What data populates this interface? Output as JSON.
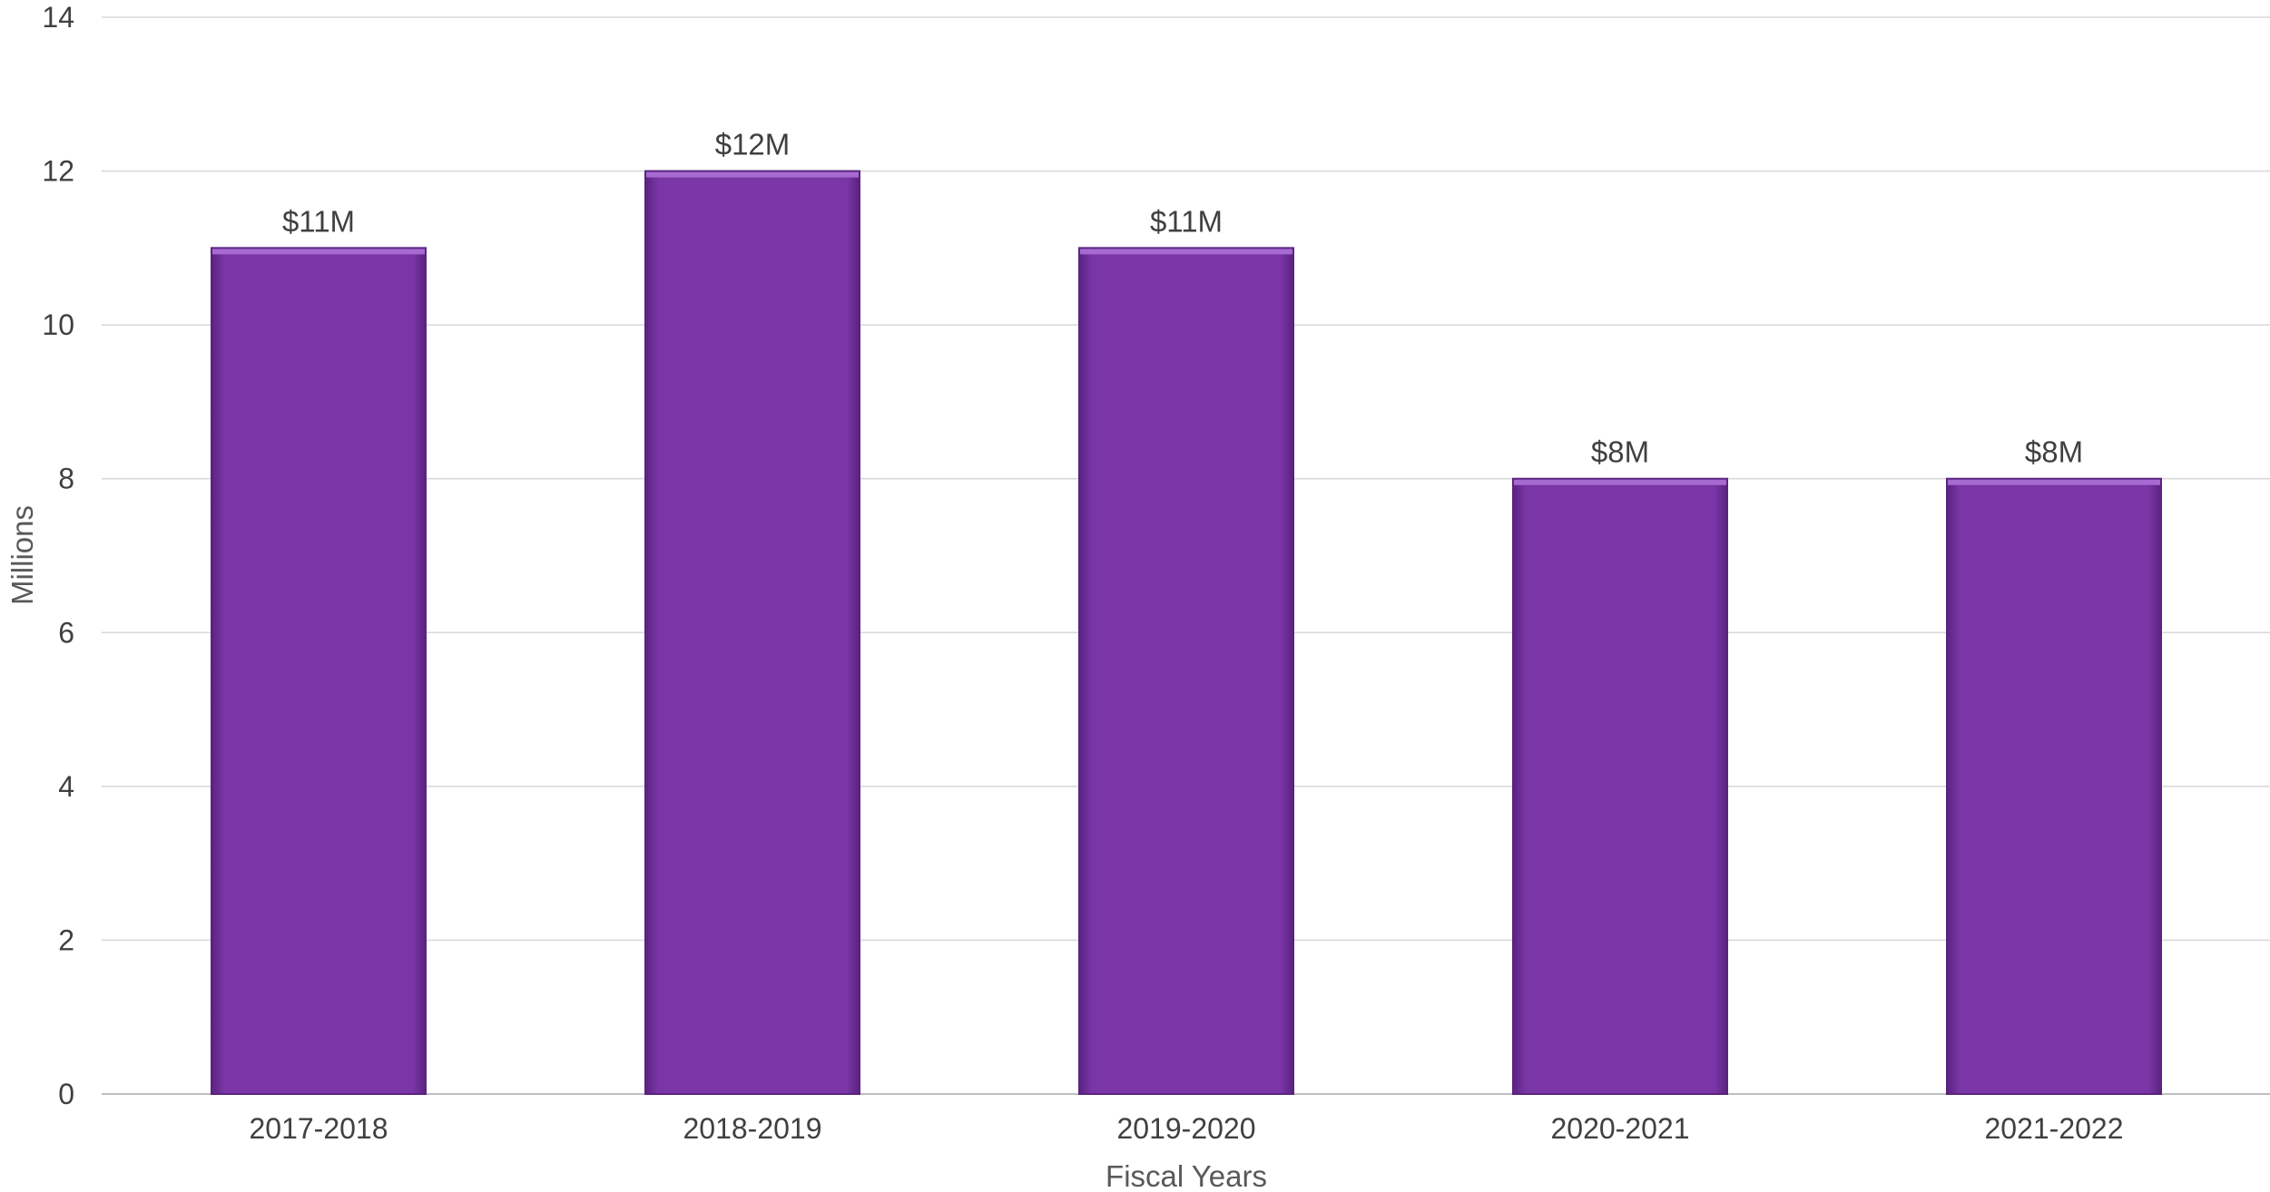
{
  "chart_data": {
    "type": "bar",
    "title": "",
    "xlabel": "Fiscal Years",
    "ylabel": "Millions",
    "categories": [
      "2017-2018",
      "2018-2019",
      "2019-2020",
      "2020-2021",
      "2021-2022"
    ],
    "values": [
      11,
      12,
      11,
      8,
      8
    ],
    "data_labels": [
      "$11M",
      "$12M",
      "$11M",
      "$8M",
      "$8M"
    ],
    "yticks": [
      0,
      2,
      4,
      6,
      8,
      10,
      12,
      14
    ],
    "ylim": [
      0,
      14
    ],
    "grid": true,
    "legend": "none",
    "colors": {
      "bar_fill": "#7a36a6",
      "bar_edge": "#5a2380",
      "bar_highlight": "#a66ad0"
    }
  }
}
